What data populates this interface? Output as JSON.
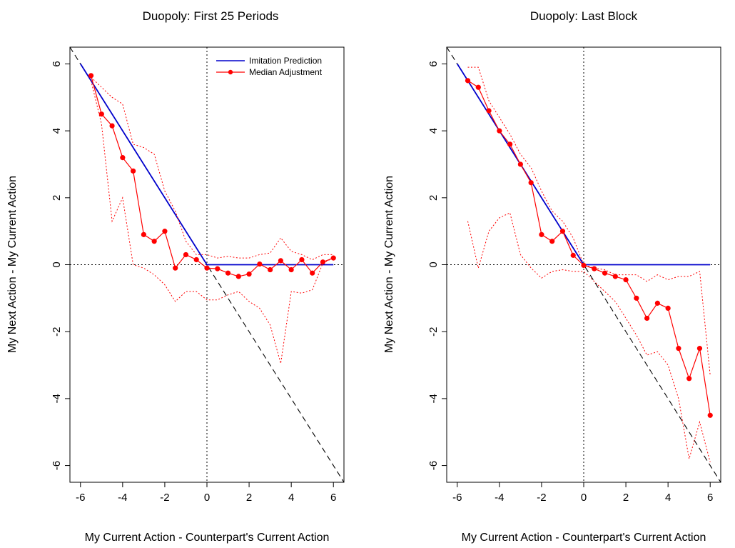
{
  "chart_data": [
    {
      "type": "line",
      "title": "Duopoly:  First 25 Periods",
      "xlabel": "My Current Action - Counterpart's Current Action",
      "ylabel": "My Next Action - My Current Action",
      "xlim": [
        -6.5,
        6.5
      ],
      "ylim": [
        -6.5,
        6.5
      ],
      "x_ticks": [
        -6,
        -4,
        -2,
        0,
        2,
        4,
        6
      ],
      "y_ticks": [
        -6,
        -4,
        -2,
        0,
        2,
        4,
        6
      ],
      "legend": {
        "position": "top-right",
        "entries": [
          "Imitation Prediction",
          "Median Adjustment"
        ]
      },
      "reference_lines": [
        "y = 0 (dotted)",
        "x = 0 (dotted)",
        "y = -x (dashed)"
      ],
      "series": [
        {
          "name": "Imitation Prediction",
          "color": "#0000cc",
          "style": "line",
          "x": [
            -6,
            0,
            6
          ],
          "y": [
            6,
            0,
            0
          ]
        },
        {
          "name": "Median Adjustment",
          "color": "#ff0000",
          "style": "line+points",
          "x": [
            -5.5,
            -5,
            -4.5,
            -4,
            -3.5,
            -3,
            -2.5,
            -2,
            -1.5,
            -1,
            -0.5,
            0,
            0.5,
            1,
            1.5,
            2,
            2.5,
            3,
            3.5,
            4,
            4.5,
            5,
            5.5,
            6
          ],
          "y": [
            5.65,
            4.5,
            4.15,
            3.2,
            2.8,
            0.9,
            0.7,
            1.0,
            -0.1,
            0.3,
            0.15,
            -0.1,
            -0.12,
            -0.25,
            -0.35,
            -0.28,
            0.02,
            -0.15,
            0.12,
            -0.15,
            0.15,
            -0.25,
            0.08,
            0.2
          ]
        },
        {
          "color": "#ff0000",
          "style": "dotted",
          "x": [
            -5.5,
            -5,
            -4.5,
            -4,
            -3.5,
            -3,
            -2.5,
            -2,
            -1.5,
            -1,
            -0.5,
            0,
            0.5,
            1,
            1.5,
            2,
            2.5,
            3,
            3.5,
            4,
            4.5,
            5,
            5.5,
            6
          ],
          "y": [
            5.6,
            5.3,
            5.0,
            4.8,
            3.6,
            3.5,
            3.3,
            2.2,
            1.6,
            0.7,
            0.3,
            0.3,
            0.2,
            0.25,
            0.2,
            0.2,
            0.3,
            0.35,
            0.8,
            0.4,
            0.3,
            0.15,
            0.3,
            0.3
          ]
        },
        {
          "color": "#ff0000",
          "style": "dotted",
          "x": [
            -5.5,
            -5,
            -4.5,
            -4,
            -3.5,
            -3,
            -2.5,
            -2,
            -1.5,
            -1,
            -0.5,
            0,
            0.5,
            1,
            1.5,
            2,
            2.5,
            3,
            3.5,
            4,
            4.5,
            5,
            5.5,
            6
          ],
          "y": [
            5.5,
            4.2,
            1.3,
            2.0,
            0.0,
            -0.1,
            -0.3,
            -0.6,
            -1.1,
            -0.8,
            -0.8,
            -1.05,
            -1.05,
            -0.9,
            -0.8,
            -1.1,
            -1.3,
            -1.8,
            -2.95,
            -0.8,
            -0.85,
            -0.75,
            0.05,
            0.2
          ]
        }
      ]
    },
    {
      "type": "line",
      "title": "Duopoly:  Last Block",
      "xlabel": "My Current Action - Counterpart's Current Action",
      "ylabel": "My Next Action - My Current Action",
      "xlim": [
        -6.5,
        6.5
      ],
      "ylim": [
        -6.5,
        6.5
      ],
      "x_ticks": [
        -6,
        -4,
        -2,
        0,
        2,
        4,
        6
      ],
      "y_ticks": [
        -6,
        -4,
        -2,
        0,
        2,
        4,
        6
      ],
      "reference_lines": [
        "y = 0 (dotted)",
        "x = 0 (dotted)",
        "y = -x (dashed)"
      ],
      "series": [
        {
          "name": "Imitation Prediction",
          "color": "#0000cc",
          "style": "line",
          "x": [
            -6,
            0,
            6
          ],
          "y": [
            6,
            0,
            0
          ]
        },
        {
          "name": "Median Adjustment",
          "color": "#ff0000",
          "style": "line+points",
          "x": [
            -5.5,
            -5,
            -4.5,
            -4,
            -3.5,
            -3,
            -2.5,
            -2,
            -1.5,
            -1,
            -0.5,
            0,
            0.5,
            1,
            1.5,
            2,
            2.5,
            3,
            3.5,
            4,
            4.5,
            5,
            5.5,
            6
          ],
          "y": [
            5.5,
            5.3,
            4.6,
            4.0,
            3.6,
            3.0,
            2.45,
            0.9,
            0.7,
            1.0,
            0.28,
            -0.02,
            -0.12,
            -0.25,
            -0.35,
            -0.45,
            -1.0,
            -1.6,
            -1.15,
            -1.3,
            -2.5,
            -3.4,
            -2.5,
            -4.5
          ]
        },
        {
          "color": "#ff0000",
          "style": "dotted",
          "x": [
            -5.5,
            -5,
            -4.5,
            -4,
            -3.5,
            -3,
            -2.5,
            -2,
            -1.5,
            -1,
            -0.5,
            0,
            0.5,
            1,
            1.5,
            2,
            2.5,
            3,
            3.5,
            4,
            4.5,
            5,
            5.5,
            6
          ],
          "y": [
            5.9,
            5.9,
            4.9,
            4.4,
            3.9,
            3.3,
            2.9,
            2.2,
            1.6,
            1.3,
            0.8,
            0.0,
            -0.1,
            -0.15,
            -0.3,
            -0.3,
            -0.3,
            -0.5,
            -0.3,
            -0.45,
            -0.35,
            -0.35,
            -0.2,
            -3.3
          ]
        },
        {
          "color": "#ff0000",
          "style": "dotted",
          "x": [
            -5.5,
            -5,
            -4.5,
            -4,
            -3.5,
            -3,
            -2.5,
            -2,
            -1.5,
            -1,
            -0.5,
            0,
            0.5,
            1,
            1.5,
            2,
            2.5,
            3,
            3.5,
            4,
            4.5,
            5,
            5.5,
            6
          ],
          "y": [
            1.3,
            -0.1,
            1.0,
            1.4,
            1.55,
            0.3,
            -0.1,
            -0.4,
            -0.2,
            -0.15,
            -0.2,
            -0.2,
            -0.5,
            -0.8,
            -1.1,
            -1.6,
            -2.1,
            -2.7,
            -2.6,
            -3.0,
            -4.0,
            -5.8,
            -4.7,
            -5.9
          ]
        }
      ]
    }
  ]
}
